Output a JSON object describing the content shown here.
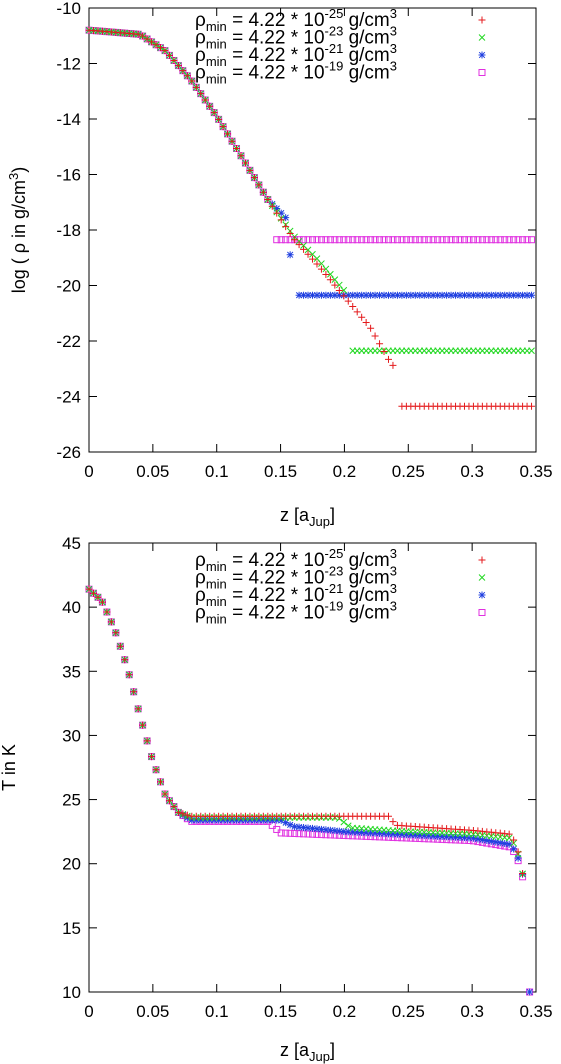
{
  "colors": {
    "s1": "#e41a1c",
    "s2": "#22d822",
    "s3": "#2040e0",
    "s4": "#e030e0"
  },
  "chart_data": [
    {
      "type": "scatter",
      "xlabel_main": "z [a",
      "xlabel_sub": "Jup",
      "xlabel_end": "]",
      "ylabel_main": "log ( ρ in g/cm",
      "ylabel_sup": "3",
      "ylabel_end": ")",
      "xlim": [
        0,
        0.35
      ],
      "ylim": [
        -26,
        -10
      ],
      "xticks": [
        "0",
        "0.05",
        "0.1",
        "0.15",
        "0.2",
        "0.25",
        "0.3",
        "0.35"
      ],
      "yticks": [
        "-26",
        "-24",
        "-22",
        "-20",
        "-18",
        "-16",
        "-14",
        "-12",
        "-10"
      ],
      "grid": false,
      "legend": "top-right",
      "series": [
        {
          "rho": "ρ",
          "sub": "min",
          "mid": " = 4.22 * 10",
          "exp": "-25",
          "unit": " g/cm",
          "unitsup": "3",
          "marker": "plus",
          "color": "#e41a1c",
          "plateau_start": 0.245,
          "plateau": -24.35,
          "x": [
            0,
            0.04,
            0.06,
            0.08,
            0.1,
            0.12,
            0.14,
            0.16,
            0.18,
            0.2,
            0.22,
            0.235,
            0.24
          ],
          "y": [
            -10.8,
            -10.95,
            -11.55,
            -12.6,
            -13.9,
            -15.4,
            -16.9,
            -18.3,
            -19.3,
            -20.4,
            -21.5,
            -22.7,
            -23.0
          ]
        },
        {
          "rho": "ρ",
          "sub": "min",
          "mid": " = 4.22 * 10",
          "exp": "-23",
          "unit": " g/cm",
          "unitsup": "3",
          "marker": "x",
          "color": "#22d822",
          "plateau_start": 0.205,
          "plateau": -22.35,
          "x": [
            0,
            0.04,
            0.06,
            0.08,
            0.1,
            0.12,
            0.14,
            0.16,
            0.18,
            0.2
          ],
          "y": [
            -10.8,
            -10.95,
            -11.55,
            -12.6,
            -13.9,
            -15.4,
            -16.9,
            -18.2,
            -19.1,
            -20.2
          ]
        },
        {
          "rho": "ρ",
          "sub": "min",
          "mid": " = 4.22 * 10",
          "exp": "-21",
          "unit": " g/cm",
          "unitsup": "3",
          "marker": "star",
          "color": "#2040e0",
          "plateau_start": 0.162,
          "plateau": -20.35,
          "x": [
            0,
            0.04,
            0.06,
            0.08,
            0.1,
            0.12,
            0.14,
            0.155,
            0.158
          ],
          "y": [
            -10.8,
            -10.95,
            -11.55,
            -12.6,
            -13.9,
            -15.4,
            -16.9,
            -17.6,
            -19.15
          ]
        },
        {
          "rho": "ρ",
          "sub": "min",
          "mid": " = 4.22 * 10",
          "exp": "-19",
          "unit": " g/cm",
          "unitsup": "3",
          "marker": "square",
          "color": "#e030e0",
          "plateau_start": 0.146,
          "plateau": -18.35,
          "x": [
            0,
            0.04,
            0.06,
            0.08,
            0.1,
            0.12,
            0.14,
            0.143
          ],
          "y": [
            -10.8,
            -10.95,
            -11.55,
            -12.6,
            -13.9,
            -15.4,
            -16.9,
            -17.95
          ]
        }
      ]
    },
    {
      "type": "scatter",
      "xlabel_main": "z [a",
      "xlabel_sub": "Jup",
      "xlabel_end": "]",
      "ylabel": "T in K",
      "xlim": [
        0,
        0.35
      ],
      "ylim": [
        10,
        45
      ],
      "xticks": [
        "0",
        "0.05",
        "0.1",
        "0.15",
        "0.2",
        "0.25",
        "0.3",
        "0.35"
      ],
      "yticks": [
        "10",
        "15",
        "20",
        "25",
        "30",
        "35",
        "40",
        "45"
      ],
      "grid": false,
      "legend": "top-right",
      "series": [
        {
          "rho": "ρ",
          "sub": "min",
          "mid": " = 4.22 * 10",
          "exp": "-25",
          "unit": " g/cm",
          "unitsup": "3",
          "marker": "plus",
          "color": "#e41a1c",
          "x": [
            0,
            0.01,
            0.02,
            0.03,
            0.04,
            0.05,
            0.06,
            0.07,
            0.08,
            0.09,
            0.1,
            0.15,
            0.2,
            0.235,
            0.24,
            0.3,
            0.33,
            0.335,
            0.34
          ],
          "y": [
            41.4,
            40.5,
            38.3,
            35.3,
            31.5,
            28.0,
            25.3,
            24.0,
            23.7,
            23.7,
            23.7,
            23.7,
            23.7,
            23.7,
            23.0,
            22.6,
            22.3,
            21.4,
            19.0
          ]
        },
        {
          "rho": "ρ",
          "sub": "min",
          "mid": " = 4.22 * 10",
          "exp": "-23",
          "unit": " g/cm",
          "unitsup": "3",
          "marker": "x",
          "color": "#22d822",
          "x": [
            0,
            0.01,
            0.02,
            0.03,
            0.04,
            0.05,
            0.06,
            0.07,
            0.08,
            0.09,
            0.1,
            0.15,
            0.195,
            0.205,
            0.25,
            0.3,
            0.33,
            0.335,
            0.34
          ],
          "y": [
            41.4,
            40.5,
            38.3,
            35.3,
            31.5,
            28.0,
            25.3,
            24.0,
            23.6,
            23.6,
            23.6,
            23.6,
            23.6,
            22.8,
            22.5,
            22.3,
            22.0,
            21.2,
            19.0
          ]
        },
        {
          "rho": "ρ",
          "sub": "min",
          "mid": " = 4.22 * 10",
          "exp": "-21",
          "unit": " g/cm",
          "unitsup": "3",
          "marker": "star",
          "color": "#2040e0",
          "x": [
            0,
            0.01,
            0.02,
            0.03,
            0.04,
            0.05,
            0.06,
            0.07,
            0.08,
            0.09,
            0.1,
            0.15,
            0.16,
            0.2,
            0.3,
            0.33,
            0.335,
            0.34,
            0.342
          ],
          "y": [
            41.4,
            40.5,
            38.3,
            35.3,
            31.5,
            28.0,
            25.3,
            24.0,
            23.4,
            23.4,
            23.4,
            23.4,
            22.9,
            22.5,
            22.0,
            21.5,
            20.8,
            19.0,
            10.0
          ]
        },
        {
          "rho": "ρ",
          "sub": "min",
          "mid": " = 4.22 * 10",
          "exp": "-19",
          "unit": " g/cm",
          "unitsup": "3",
          "marker": "square",
          "color": "#e030e0",
          "x": [
            0,
            0.01,
            0.02,
            0.03,
            0.04,
            0.05,
            0.06,
            0.07,
            0.08,
            0.09,
            0.1,
            0.14,
            0.15,
            0.2,
            0.3,
            0.33,
            0.335,
            0.34,
            0.342
          ],
          "y": [
            41.4,
            40.5,
            38.3,
            35.3,
            31.5,
            28.0,
            25.3,
            24.0,
            23.3,
            23.3,
            23.3,
            23.3,
            22.4,
            22.2,
            21.8,
            21.3,
            20.6,
            18.8,
            10.0
          ]
        }
      ]
    }
  ]
}
